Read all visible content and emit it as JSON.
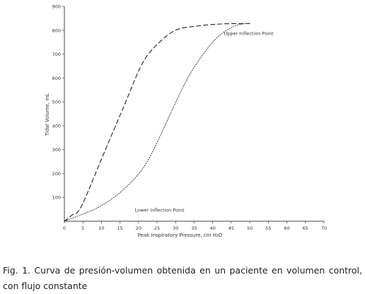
{
  "chart_data": {
    "type": "line",
    "xlabel": "Peak Inspiratory Pressure, cm H₂O",
    "ylabel": "Tidal Volume, mL",
    "xlim": [
      0,
      70
    ],
    "ylim": [
      0,
      900
    ],
    "x_ticks": [
      "0",
      "5",
      "10",
      "15",
      "20",
      "25",
      "30",
      "35",
      "40",
      "45",
      "50",
      "55",
      "60",
      "65",
      "70"
    ],
    "y_ticks": [
      "100",
      "200",
      "300",
      "400",
      "500",
      "600",
      "700",
      "800",
      "900"
    ],
    "grid": false,
    "series": [
      {
        "style": "dashed",
        "points": [
          [
            0,
            0
          ],
          [
            2,
            25
          ],
          [
            4.5,
            60
          ],
          [
            10,
            260
          ],
          [
            16,
            480
          ],
          [
            21,
            660
          ],
          [
            25,
            740
          ],
          [
            30,
            800
          ],
          [
            36,
            818
          ],
          [
            42,
            826
          ],
          [
            48,
            828
          ],
          [
            50,
            828
          ]
        ]
      },
      {
        "style": "dotted",
        "points": [
          [
            0,
            0
          ],
          [
            5,
            30
          ],
          [
            10,
            65
          ],
          [
            15,
            120
          ],
          [
            19,
            180
          ],
          [
            22,
            240
          ],
          [
            25,
            330
          ],
          [
            28,
            430
          ],
          [
            31,
            530
          ],
          [
            34,
            620
          ],
          [
            37,
            690
          ],
          [
            40,
            750
          ],
          [
            43,
            792
          ],
          [
            46,
            818
          ],
          [
            48,
            826
          ],
          [
            50,
            828
          ]
        ]
      }
    ],
    "annotations": [
      {
        "text": "Upper Inflection Point",
        "x": 43,
        "y": 780
      },
      {
        "text": "Lower Inflection Point",
        "x": 19,
        "y": 40
      }
    ]
  },
  "caption": {
    "label": "Fig. 1.",
    "text": "Curva de presión-volumen obtenida en un paciente en volumen control, con flujo constante"
  }
}
